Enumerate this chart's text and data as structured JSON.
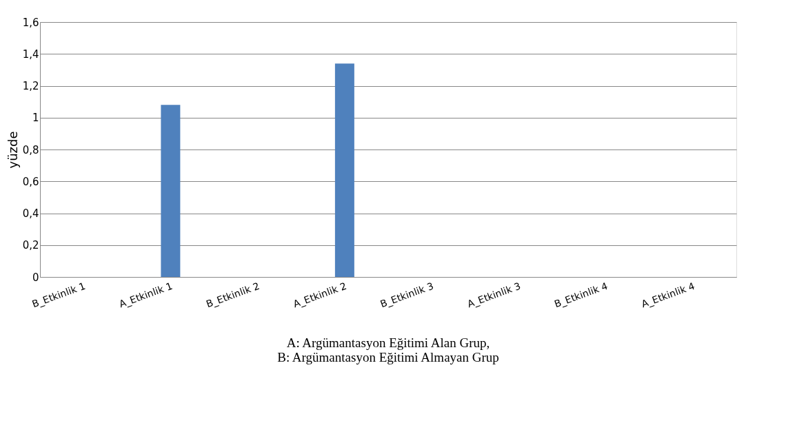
{
  "chart_data": {
    "type": "bar",
    "ylabel": "yüzde",
    "categories": [
      "B_Etkinlik 1",
      "A_Etkinlik 1",
      "B_Etkinlik 2",
      "A_Etkinlik 2",
      "B_Etkinlik 3",
      "A_Etkinlik 3",
      "B_Etkinlik 4",
      "A_Etkinlik 4"
    ],
    "values": [
      0,
      1.08,
      0,
      1.34,
      0,
      0,
      0,
      0
    ],
    "color": "#4f81bd",
    "ylim": [
      0,
      1.6
    ],
    "yticks": [
      0,
      {
        "value": 0.2,
        "label": "0,2"
      },
      {
        "value": 0.4,
        "label": "0,4"
      },
      {
        "value": 0.6,
        "label": "0,6"
      },
      {
        "value": 0.8,
        "label": "0,8"
      },
      1,
      {
        "value": 1.2,
        "label": "1,2"
      },
      {
        "value": 1.4,
        "label": "1,4"
      },
      {
        "value": 1.6,
        "label": "1,6"
      }
    ],
    "grid": "y",
    "annotations": [
      "A: Argümantasyon Eğitimi Alan Grup,",
      "B: Argümantasyon Eğitimi Almayan Grup"
    ]
  }
}
